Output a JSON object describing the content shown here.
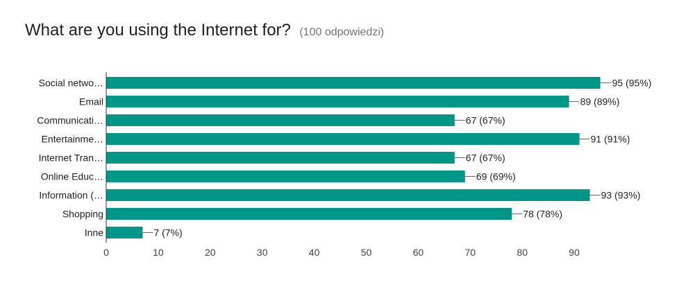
{
  "header": {
    "title": "What are you using the Internet for?",
    "subtitle": "(100 odpowiedzi)"
  },
  "colors": {
    "bar": "#009688",
    "axis": "#333333",
    "leader": "#666666"
  },
  "chart_data": {
    "type": "bar",
    "orientation": "horizontal",
    "title": "What are you using the Internet for?",
    "subtitle": "(100 odpowiedzi)",
    "categories": [
      "Social netwo…",
      "Email",
      "Communicati…",
      "Entertainme…",
      "Internet Tran…",
      "Online Educ…",
      "Information (…",
      "Shopping",
      "Inne"
    ],
    "values": [
      95,
      89,
      67,
      91,
      67,
      69,
      93,
      78,
      7
    ],
    "data_labels": [
      "95 (95%)",
      "89 (89%)",
      "67 (67%)",
      "91 (91%)",
      "67 (67%)",
      "69 (69%)",
      "93 (93%)",
      "78 (78%)",
      "7 (7%)"
    ],
    "x_ticks": [
      0,
      10,
      20,
      30,
      40,
      50,
      60,
      70,
      80,
      90
    ],
    "xlim": [
      0,
      95
    ],
    "grid": false
  }
}
